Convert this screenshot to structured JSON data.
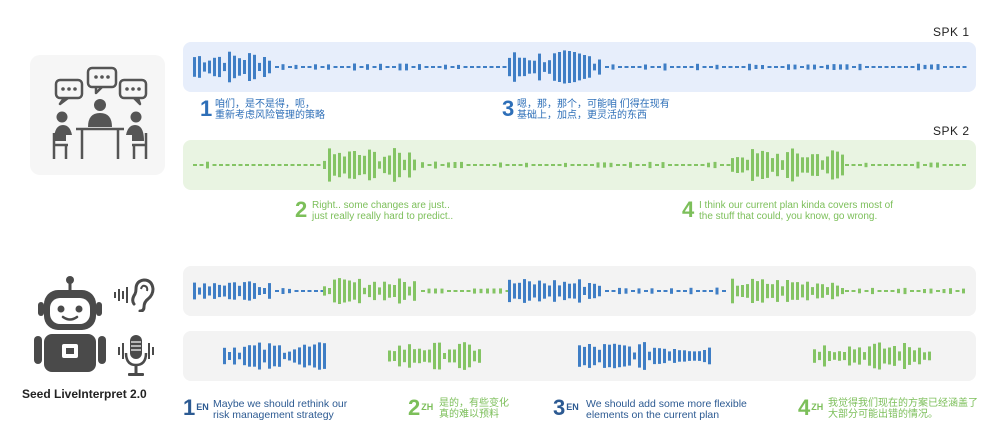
{
  "speakers": {
    "spk1_label": "SPK 1",
    "spk2_label": "SPK 2"
  },
  "colors": {
    "blue": "#3f7ec5",
    "green": "#84c464",
    "navy": "#2c5a92",
    "blue_band": "#e6eefb",
    "green_band": "#eaf4e3",
    "grey_band": "#f3f3f3"
  },
  "icons": {
    "meeting": "meeting-people-icon",
    "robot": "robot-icon",
    "ear": "ear-sound-icon",
    "mic": "microphone-icon"
  },
  "spk1_captions": [
    {
      "num": "1",
      "line1": "咱们，是不是得，呃，",
      "line2": "重新考虑风险管理的策略"
    },
    {
      "num": "3",
      "line1": "嗯，那，那个，可能咱 们得在现有",
      "line2": "基础上，加点，更灵活的东西"
    }
  ],
  "spk2_captions": [
    {
      "num": "2",
      "line1": "Right.. some changes are just..",
      "line2": "just really really hard to predict.."
    },
    {
      "num": "4",
      "line1": "I think our current plan kinda covers most of",
      "line2": "the stuff that could, you know, go wrong."
    }
  ],
  "system_name": "Seed LiveInterpret 2.0",
  "translations": [
    {
      "num": "1",
      "lang": "EN",
      "line1": "Maybe we should rethink our",
      "line2": "risk management strategy"
    },
    {
      "num": "2",
      "lang": "ZH",
      "line1": "是的，有些变化",
      "line2": "真的难以预料"
    },
    {
      "num": "3",
      "lang": "EN",
      "line1": "We should add some more flexible",
      "line2": "elements on the current plan"
    },
    {
      "num": "4",
      "lang": "ZH",
      "line1": "我觉得我们现在的方案已经涵盖了",
      "line2": "大部分可能出错的情况。"
    }
  ]
}
